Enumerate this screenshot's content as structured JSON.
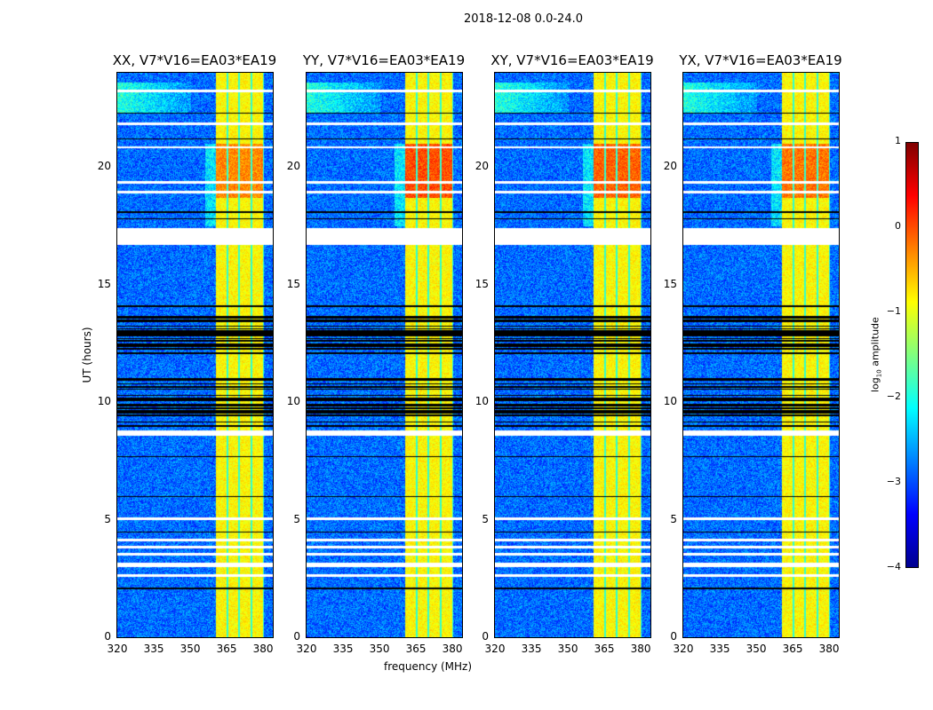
{
  "chart_data": {
    "type": "heatmap",
    "suptitle": "2018-12-08 0.0-24.0",
    "xlabel": "frequency (MHz)",
    "ylabel": "UT (hours)",
    "xlim": [
      320,
      384
    ],
    "ylim": [
      0,
      24
    ],
    "xticks": [
      "320",
      "335",
      "350",
      "365",
      "380"
    ],
    "yticks": [
      "0",
      "5",
      "10",
      "15",
      "20"
    ],
    "panels": [
      {
        "title": "XX, V7*V16=EA03*EA19",
        "band_strength": -0.6
      },
      {
        "title": "YY, V7*V16=EA03*EA19",
        "band_strength": -0.3
      },
      {
        "title": "XY, V7*V16=EA03*EA19",
        "band_strength": -0.4
      },
      {
        "title": "YX, V7*V16=EA03*EA19",
        "band_strength": -0.5
      }
    ],
    "bright_band_mhz": [
      360.5,
      380
    ],
    "flagged_hours": [
      [
        16.7,
        17.4
      ],
      [
        3.0,
        3.2
      ],
      [
        3.5,
        3.6
      ],
      [
        3.8,
        3.9
      ],
      [
        4.1,
        4.2
      ],
      [
        2.6,
        2.7
      ],
      [
        8.6,
        8.8
      ],
      [
        5.0,
        5.1
      ],
      [
        20.8,
        20.9
      ],
      [
        21.8,
        21.9
      ],
      [
        23.2,
        23.3
      ],
      [
        19.3,
        19.4
      ],
      [
        18.9,
        19.0
      ]
    ],
    "colorbar": {
      "label": "log10 amplitude",
      "label_main": "log",
      "label_sub": "10",
      "label_rest": " amplitude",
      "ticks": [
        "1",
        "0",
        "−1",
        "−2",
        "−3",
        "−4"
      ],
      "range": [
        -4,
        1
      ]
    }
  }
}
